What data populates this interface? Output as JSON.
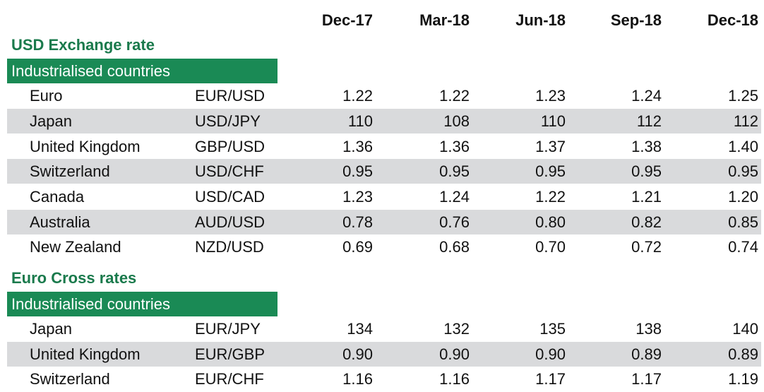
{
  "columns": [
    "Dec-17",
    "Mar-18",
    "Jun-18",
    "Sep-18",
    "Dec-18"
  ],
  "sections": [
    {
      "title": "USD Exchange rate",
      "group": "Industrialised countries",
      "rows": [
        {
          "name": "Euro",
          "pair": "EUR/USD",
          "values": [
            "1.22",
            "1.22",
            "1.23",
            "1.24",
            "1.25"
          ]
        },
        {
          "name": "Japan",
          "pair": "USD/JPY",
          "values": [
            "110",
            "108",
            "110",
            "112",
            "112"
          ]
        },
        {
          "name": "United Kingdom",
          "pair": "GBP/USD",
          "values": [
            "1.36",
            "1.36",
            "1.37",
            "1.38",
            "1.40"
          ]
        },
        {
          "name": "Switzerland",
          "pair": "USD/CHF",
          "values": [
            "0.95",
            "0.95",
            "0.95",
            "0.95",
            "0.95"
          ]
        },
        {
          "name": "Canada",
          "pair": "USD/CAD",
          "values": [
            "1.23",
            "1.24",
            "1.22",
            "1.21",
            "1.20"
          ]
        },
        {
          "name": "Australia",
          "pair": "AUD/USD",
          "values": [
            "0.78",
            "0.76",
            "0.80",
            "0.82",
            "0.85"
          ]
        },
        {
          "name": "New Zealand",
          "pair": "NZD/USD",
          "values": [
            "0.69",
            "0.68",
            "0.70",
            "0.72",
            "0.74"
          ]
        }
      ]
    },
    {
      "title": "Euro Cross rates",
      "group": "Industrialised countries",
      "rows": [
        {
          "name": "Japan",
          "pair": "EUR/JPY",
          "values": [
            "134",
            "132",
            "135",
            "138",
            "140"
          ]
        },
        {
          "name": "United Kingdom",
          "pair": "EUR/GBP",
          "values": [
            "0.90",
            "0.90",
            "0.90",
            "0.89",
            "0.89"
          ]
        },
        {
          "name": "Switzerland",
          "pair": "EUR/CHF",
          "values": [
            "1.16",
            "1.16",
            "1.17",
            "1.17",
            "1.19"
          ]
        }
      ]
    }
  ],
  "colors": {
    "section_title": "#1a7a4c",
    "group_bar": "#1a8a55",
    "row_shade": "#d9dadc"
  }
}
